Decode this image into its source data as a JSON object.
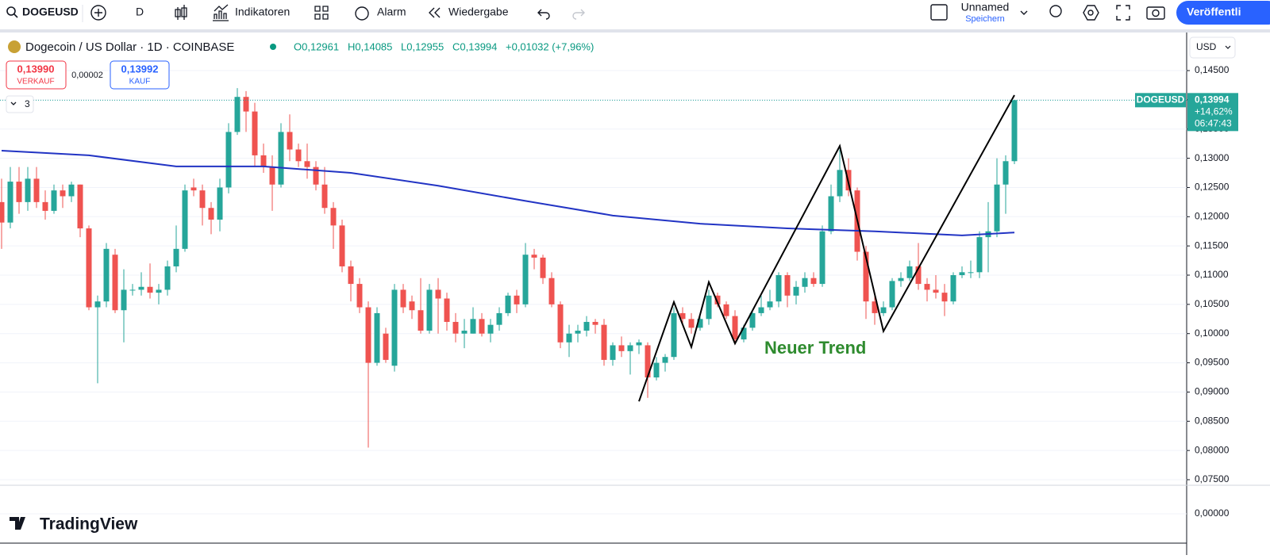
{
  "toolbar": {
    "symbol": "DOGEUSD",
    "interval": "D",
    "indicators": "Indikatoren",
    "alarm": "Alarm",
    "replay": "Wiedergabe",
    "layout_name": "Unnamed",
    "save": "Speichern",
    "publish": "Veröffentli"
  },
  "header": {
    "title": "Dogecoin / US Dollar · 1D · COINBASE",
    "open": "O0,12961",
    "high": "H0,14085",
    "low": "L0,12955",
    "close": "C0,13994",
    "change": "+0,01032 (+7,96%)",
    "sell_price": "0,13990",
    "sell_label": "VERKAUF",
    "spread": "0,00002",
    "buy_price": "0,13992",
    "buy_label": "KAUF",
    "collapsed_count": "3"
  },
  "currency": "USD",
  "logo": "TradingView",
  "chart_data": {
    "type": "candlestick",
    "ylim": [
      0.07405,
      0.15138
    ],
    "yticks": [
      {
        "value": 0.145,
        "label": "0,14500"
      },
      {
        "value": 0.14,
        "label": "0,14000"
      },
      {
        "value": 0.135,
        "label": "0,13500"
      },
      {
        "value": 0.13,
        "label": "0,13000"
      },
      {
        "value": 0.125,
        "label": "0,12500"
      },
      {
        "value": 0.12,
        "label": "0,12000"
      },
      {
        "value": 0.115,
        "label": "0,11500"
      },
      {
        "value": 0.11,
        "label": "0,11000"
      },
      {
        "value": 0.105,
        "label": "0,10500"
      },
      {
        "value": 0.1,
        "label": "0,10000"
      },
      {
        "value": 0.095,
        "label": "0,09500"
      },
      {
        "value": 0.09,
        "label": "0,09000"
      },
      {
        "value": 0.085,
        "label": "0,08500"
      },
      {
        "value": 0.08,
        "label": "0,08000"
      },
      {
        "value": 0.075,
        "label": "0,07500"
      }
    ],
    "pane2_yticks": [
      {
        "value": 0,
        "label": "0,00000"
      }
    ],
    "up_color": "#26a69a",
    "down_color": "#ef5350",
    "candles": [
      [
        0.1225,
        0.1265,
        0.1145,
        0.119
      ],
      [
        0.119,
        0.1285,
        0.118,
        0.126
      ],
      [
        0.126,
        0.1285,
        0.1205,
        0.1225
      ],
      [
        0.1225,
        0.1285,
        0.121,
        0.1265
      ],
      [
        0.1265,
        0.1285,
        0.1215,
        0.1225
      ],
      [
        0.1225,
        0.1245,
        0.1195,
        0.121
      ],
      [
        0.121,
        0.1255,
        0.1205,
        0.1245
      ],
      [
        0.1245,
        0.1255,
        0.1215,
        0.1235
      ],
      [
        0.1235,
        0.126,
        0.1225,
        0.1255
      ],
      [
        0.1255,
        0.1255,
        0.1165,
        0.118
      ],
      [
        0.118,
        0.1185,
        0.104,
        0.1045
      ],
      [
        0.1045,
        0.1065,
        0.0915,
        0.1055
      ],
      [
        0.1055,
        0.1155,
        0.1045,
        0.1145
      ],
      [
        0.1135,
        0.1145,
        0.1035,
        0.104
      ],
      [
        0.104,
        0.111,
        0.0985,
        0.1075
      ],
      [
        0.1075,
        0.1085,
        0.1065,
        0.1075
      ],
      [
        0.1075,
        0.1105,
        0.1065,
        0.108
      ],
      [
        0.108,
        0.112,
        0.106,
        0.107
      ],
      [
        0.107,
        0.1085,
        0.105,
        0.1075
      ],
      [
        0.1075,
        0.1125,
        0.1065,
        0.1115
      ],
      [
        0.1115,
        0.1185,
        0.1105,
        0.1145
      ],
      [
        0.1145,
        0.1255,
        0.114,
        0.1245
      ],
      [
        0.125,
        0.1265,
        0.1235,
        0.1245
      ],
      [
        0.1245,
        0.1255,
        0.1185,
        0.1215
      ],
      [
        0.1215,
        0.1225,
        0.117,
        0.1195
      ],
      [
        0.1195,
        0.1265,
        0.1175,
        0.125
      ],
      [
        0.125,
        0.136,
        0.124,
        0.1345
      ],
      [
        0.1345,
        0.142,
        0.134,
        0.1405
      ],
      [
        0.1405,
        0.1415,
        0.1345,
        0.138
      ],
      [
        0.138,
        0.1395,
        0.1285,
        0.1305
      ],
      [
        0.1305,
        0.1325,
        0.1275,
        0.1285
      ],
      [
        0.1285,
        0.1305,
        0.121,
        0.1255
      ],
      [
        0.1255,
        0.136,
        0.125,
        0.1345
      ],
      [
        0.1345,
        0.1375,
        0.1295,
        0.1315
      ],
      [
        0.1315,
        0.1325,
        0.1285,
        0.1295
      ],
      [
        0.1295,
        0.1325,
        0.1265,
        0.1285
      ],
      [
        0.1285,
        0.1295,
        0.1245,
        0.1255
      ],
      [
        0.1255,
        0.1285,
        0.1205,
        0.1215
      ],
      [
        0.1215,
        0.1225,
        0.1145,
        0.1185
      ],
      [
        0.1185,
        0.1195,
        0.1105,
        0.1115
      ],
      [
        0.1115,
        0.1125,
        0.1055,
        0.1085
      ],
      [
        0.1085,
        0.1095,
        0.1035,
        0.1045
      ],
      [
        0.1045,
        0.1055,
        0.0805,
        0.095
      ],
      [
        0.095,
        0.1045,
        0.0945,
        0.1035
      ],
      [
        0.1,
        0.101,
        0.095,
        0.0955
      ],
      [
        0.0945,
        0.1085,
        0.0935,
        0.1075
      ],
      [
        0.1075,
        0.1085,
        0.1035,
        0.1045
      ],
      [
        0.1055,
        0.1065,
        0.1025,
        0.104
      ],
      [
        0.104,
        0.1095,
        0.1,
        0.1005
      ],
      [
        0.1005,
        0.1085,
        0.1,
        0.1075
      ],
      [
        0.1075,
        0.1095,
        0.1,
        0.106
      ],
      [
        0.106,
        0.107,
        0.1005,
        0.102
      ],
      [
        0.102,
        0.1035,
        0.0985,
        0.1
      ],
      [
        0.1,
        0.1025,
        0.0975,
        0.1005
      ],
      [
        0.1,
        0.1045,
        0.1,
        0.1025
      ],
      [
        0.1025,
        0.1035,
        0.0995,
        0.1
      ],
      [
        0.1,
        0.1025,
        0.0985,
        0.1015
      ],
      [
        0.1015,
        0.1045,
        0.1005,
        0.1035
      ],
      [
        0.1035,
        0.107,
        0.103,
        0.1065
      ],
      [
        0.1065,
        0.1075,
        0.1035,
        0.105
      ],
      [
        0.105,
        0.1155,
        0.1045,
        0.1135
      ],
      [
        0.1135,
        0.1145,
        0.111,
        0.113
      ],
      [
        0.113,
        0.1135,
        0.1085,
        0.1095
      ],
      [
        0.1095,
        0.1105,
        0.1045,
        0.105
      ],
      [
        0.105,
        0.1055,
        0.0975,
        0.0985
      ],
      [
        0.0985,
        0.1015,
        0.096,
        0.1
      ],
      [
        0.1,
        0.1015,
        0.0985,
        0.1005
      ],
      [
        0.1005,
        0.103,
        0.0995,
        0.102
      ],
      [
        0.102,
        0.1025,
        0.1,
        0.1015
      ],
      [
        0.1015,
        0.1025,
        0.0945,
        0.0955
      ],
      [
        0.0955,
        0.0985,
        0.0945,
        0.098
      ],
      [
        0.098,
        0.0995,
        0.096,
        0.097
      ],
      [
        0.097,
        0.0985,
        0.093,
        0.098
      ],
      [
        0.098,
        0.099,
        0.0965,
        0.0985
      ],
      [
        0.098,
        0.0985,
        0.089,
        0.0925
      ],
      [
        0.0925,
        0.096,
        0.092,
        0.095
      ],
      [
        0.095,
        0.0965,
        0.0935,
        0.096
      ],
      [
        0.096,
        0.1045,
        0.0955,
        0.1035
      ],
      [
        0.1035,
        0.1045,
        0.1015,
        0.1025
      ],
      [
        0.1025,
        0.1035,
        0.1,
        0.101
      ],
      [
        0.101,
        0.1035,
        0.1005,
        0.1025
      ],
      [
        0.1025,
        0.1075,
        0.1015,
        0.1065
      ],
      [
        0.1065,
        0.107,
        0.1045,
        0.105
      ],
      [
        0.105,
        0.1055,
        0.1025,
        0.103
      ],
      [
        0.103,
        0.104,
        0.0985,
        0.099
      ],
      [
        0.099,
        0.1015,
        0.0985,
        0.101
      ],
      [
        0.101,
        0.104,
        0.1005,
        0.1035
      ],
      [
        0.1035,
        0.1065,
        0.103,
        0.1045
      ],
      [
        0.1045,
        0.1075,
        0.104,
        0.1055
      ],
      [
        0.1055,
        0.1105,
        0.1045,
        0.11
      ],
      [
        0.11,
        0.1105,
        0.1045,
        0.1065
      ],
      [
        0.1065,
        0.109,
        0.105,
        0.108
      ],
      [
        0.108,
        0.1105,
        0.107,
        0.1095
      ],
      [
        0.1095,
        0.1105,
        0.108,
        0.1085
      ],
      [
        0.1085,
        0.1185,
        0.108,
        0.1175
      ],
      [
        0.1175,
        0.1255,
        0.117,
        0.1235
      ],
      [
        0.1235,
        0.1315,
        0.1225,
        0.128
      ],
      [
        0.128,
        0.13,
        0.1235,
        0.1245
      ],
      [
        0.1245,
        0.125,
        0.1125,
        0.114
      ],
      [
        0.114,
        0.115,
        0.1025,
        0.1055
      ],
      [
        0.1055,
        0.1065,
        0.1015,
        0.1035
      ],
      [
        0.1035,
        0.1055,
        0.103,
        0.1045
      ],
      [
        0.1045,
        0.1095,
        0.104,
        0.109
      ],
      [
        0.109,
        0.1105,
        0.108,
        0.1095
      ],
      [
        0.1095,
        0.1125,
        0.109,
        0.1115
      ],
      [
        0.1115,
        0.1155,
        0.1075,
        0.1085
      ],
      [
        0.1085,
        0.1095,
        0.1055,
        0.1075
      ],
      [
        0.1075,
        0.11,
        0.106,
        0.107
      ],
      [
        0.107,
        0.1085,
        0.103,
        0.1055
      ],
      [
        0.1055,
        0.1105,
        0.105,
        0.11
      ],
      [
        0.11,
        0.1115,
        0.1095,
        0.1105
      ],
      [
        0.1105,
        0.1125,
        0.1095,
        0.1105
      ],
      [
        0.1105,
        0.1175,
        0.1095,
        0.1165
      ],
      [
        0.1165,
        0.1225,
        0.1105,
        0.1175
      ],
      [
        0.1175,
        0.13,
        0.1165,
        0.1255
      ],
      [
        0.1255,
        0.1305,
        0.1205,
        0.1295
      ],
      [
        0.1295,
        0.14,
        0.129,
        0.13994
      ]
    ],
    "ma": {
      "color": "#2234c4",
      "x": [
        0,
        10,
        20,
        30,
        40,
        50,
        60,
        70,
        80,
        90,
        100,
        110,
        116
      ],
      "values": [
        0.1313,
        0.1305,
        0.1286,
        0.1286,
        0.1275,
        0.1253,
        0.1227,
        0.1202,
        0.1188,
        0.118,
        0.1175,
        0.1168,
        0.1173
      ]
    },
    "trend_line": {
      "color": "#000000",
      "x": [
        73,
        77,
        79,
        81,
        84,
        96,
        101,
        116
      ],
      "values": [
        0.0884,
        0.1054,
        0.0977,
        0.1088,
        0.0983,
        0.1321,
        0.1004,
        0.1408
      ]
    },
    "annotation": "Neuer Trend",
    "last_price": {
      "value": 0.13994,
      "label": "0,13994"
    },
    "symbol_tag": "DOGEUSD",
    "last_change": "+14,62%",
    "countdown": "06:47:43"
  }
}
